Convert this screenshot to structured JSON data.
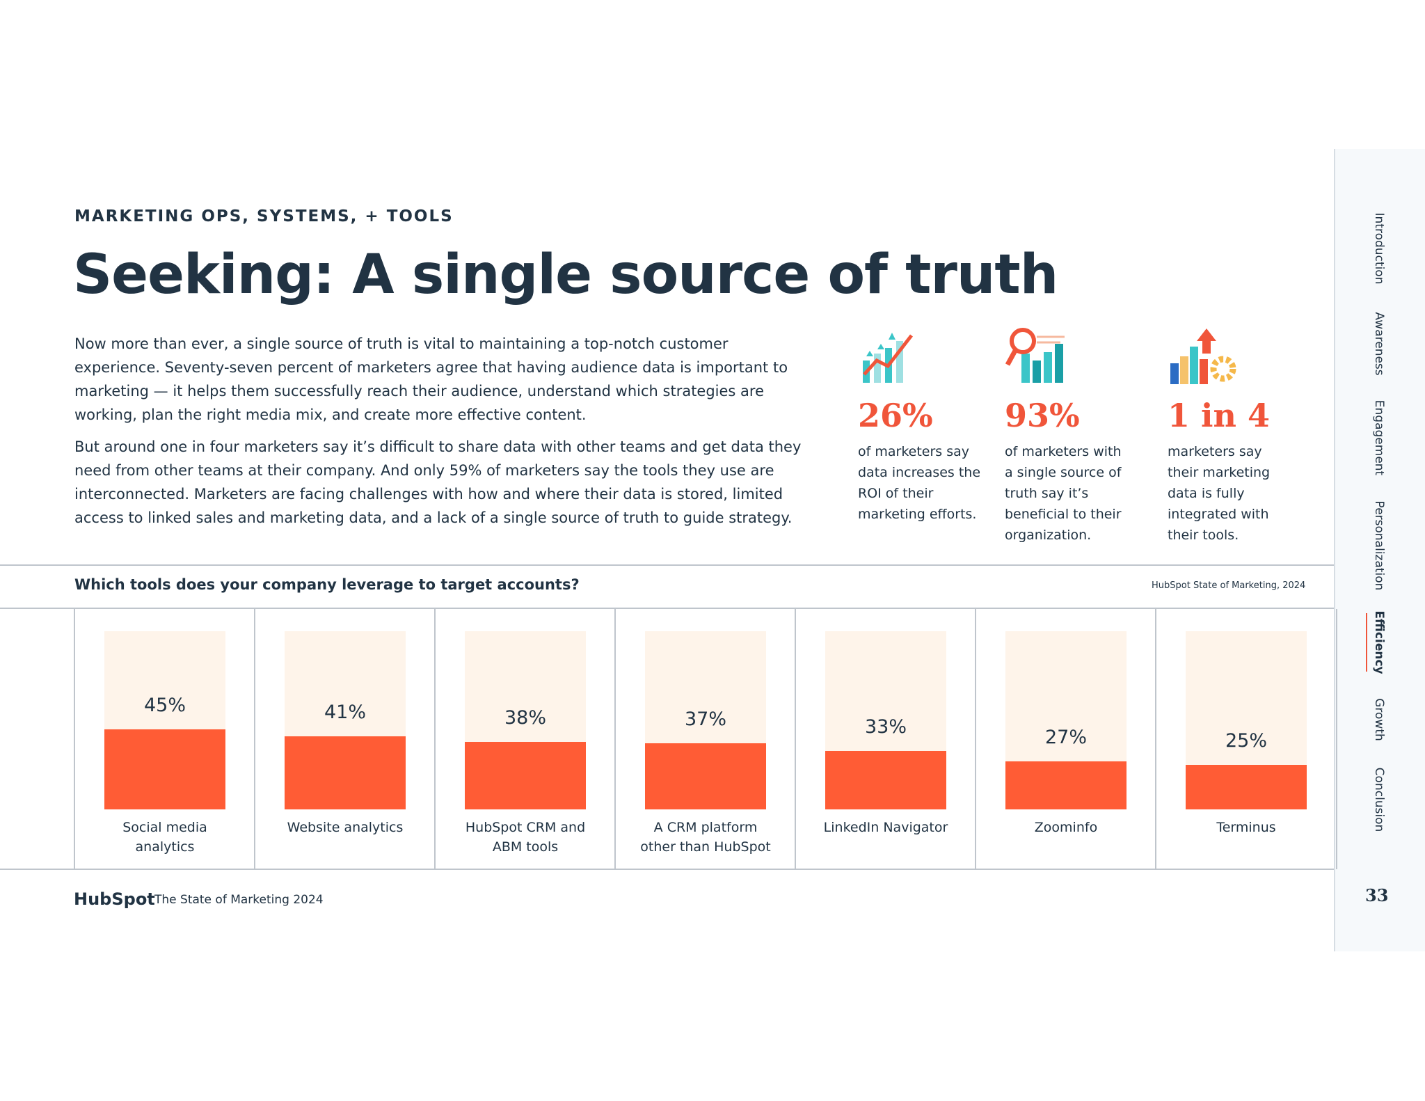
{
  "section": "MARKETING OPS, SYSTEMS, + TOOLS",
  "title": "Seeking: A single source of truth",
  "paragraphs": [
    "Now more than ever, a single source of truth is vital to maintaining a top-notch customer experience. Seventy-seven percent of marketers agree that having audience data is important to marketing — it helps them successfully reach their audience, understand which strategies are working, plan the right media mix, and create more effective content.",
    "But around one in four marketers say it’s difficult to share data with other teams and get data they need from other teams at their company. And only 59% of marketers say the tools they use are interconnected. Marketers are facing challenges with how and where their data is stored, limited access to linked sales and marketing data, and a lack of a single source of truth to guide strategy."
  ],
  "stats": [
    {
      "figure": "26%",
      "text": "of marketers say data increases the ROI of their marketing efforts."
    },
    {
      "figure": "93%",
      "text": "of marketers with a single source of truth say it’s beneficial to their organization."
    },
    {
      "figure": "1 in 4",
      "text": "marketers say their marketing data is fully integrated with their tools."
    }
  ],
  "chart_data": {
    "type": "bar",
    "title": "Which tools does your company leverage to target accounts?",
    "source": "HubSpot State of Marketing, 2024",
    "categories": [
      "Social media analytics",
      "Website analytics",
      "HubSpot CRM and ABM tools",
      "A CRM platform other than HubSpot",
      "LinkedIn Navigator",
      "Zoominfo",
      "Terminus"
    ],
    "values": [
      45,
      41,
      38,
      37,
      33,
      27,
      25
    ],
    "value_labels": [
      "45%",
      "41%",
      "38%",
      "37%",
      "33%",
      "27%",
      "25%"
    ],
    "color": "#ff5c35",
    "track_color": "#fef4ea",
    "ylim": [
      0,
      100
    ]
  },
  "footer": {
    "logo": "HubSpot",
    "publication": "The State of Marketing 2024",
    "page": "33"
  },
  "nav": {
    "items": [
      "Introduction",
      "Awareness",
      "Engagement",
      "Personalization",
      "Efficiency",
      "Growth",
      "Conclusion"
    ],
    "active": 4
  }
}
